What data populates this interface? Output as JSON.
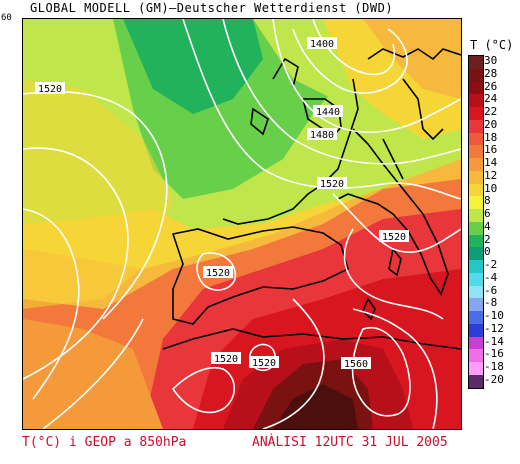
{
  "header": {
    "title": "GLOBAL MODELL (GM)—Deutscher Wetterdienst (DWD)",
    "corner_value": "60"
  },
  "legend": {
    "title": "T (°C)",
    "levels": [
      {
        "label": "30",
        "color": "#6b1f1f"
      },
      {
        "label": "28",
        "color": "#7b1212"
      },
      {
        "label": "26",
        "color": "#8e0d14"
      },
      {
        "label": "24",
        "color": "#b7101a"
      },
      {
        "label": "22",
        "color": "#d8161f"
      },
      {
        "label": "20",
        "color": "#e9363a"
      },
      {
        "label": "18",
        "color": "#ef5a3e"
      },
      {
        "label": "16",
        "color": "#f3783b"
      },
      {
        "label": "14",
        "color": "#f49a3b"
      },
      {
        "label": "12",
        "color": "#f6b93e"
      },
      {
        "label": "10",
        "color": "#f6d637"
      },
      {
        "label": "8",
        "color": "#f5f23a"
      },
      {
        "label": "6",
        "color": "#bfe64a"
      },
      {
        "label": "4",
        "color": "#67cf4a"
      },
      {
        "label": "2",
        "color": "#22b25b"
      },
      {
        "label": "0",
        "color": "#0f9d78"
      },
      {
        "label": "-2",
        "color": "#26c6c6"
      },
      {
        "label": "-4",
        "color": "#54d9ea"
      },
      {
        "label": "-6",
        "color": "#8fe3f5"
      },
      {
        "label": "-8",
        "color": "#86a6f2"
      },
      {
        "label": "-10",
        "color": "#4c6de6"
      },
      {
        "label": "-12",
        "color": "#2d3ed8"
      },
      {
        "label": "-14",
        "color": "#c83fd2"
      },
      {
        "label": "-16",
        "color": "#f06ee6"
      },
      {
        "label": "-18",
        "color": "#ff9dff"
      },
      {
        "label": "-20",
        "color": "#5b2a6b"
      }
    ]
  },
  "contour_labels": [
    "1400",
    "1440",
    "1480",
    "1520",
    "1520",
    "1520",
    "1520",
    "1520",
    "1520",
    "1560"
  ],
  "footer": {
    "left": "T(°C) i GEOP a 850hPa",
    "right": "ANÀLISI 12UTC 31 JUL 2005"
  }
}
